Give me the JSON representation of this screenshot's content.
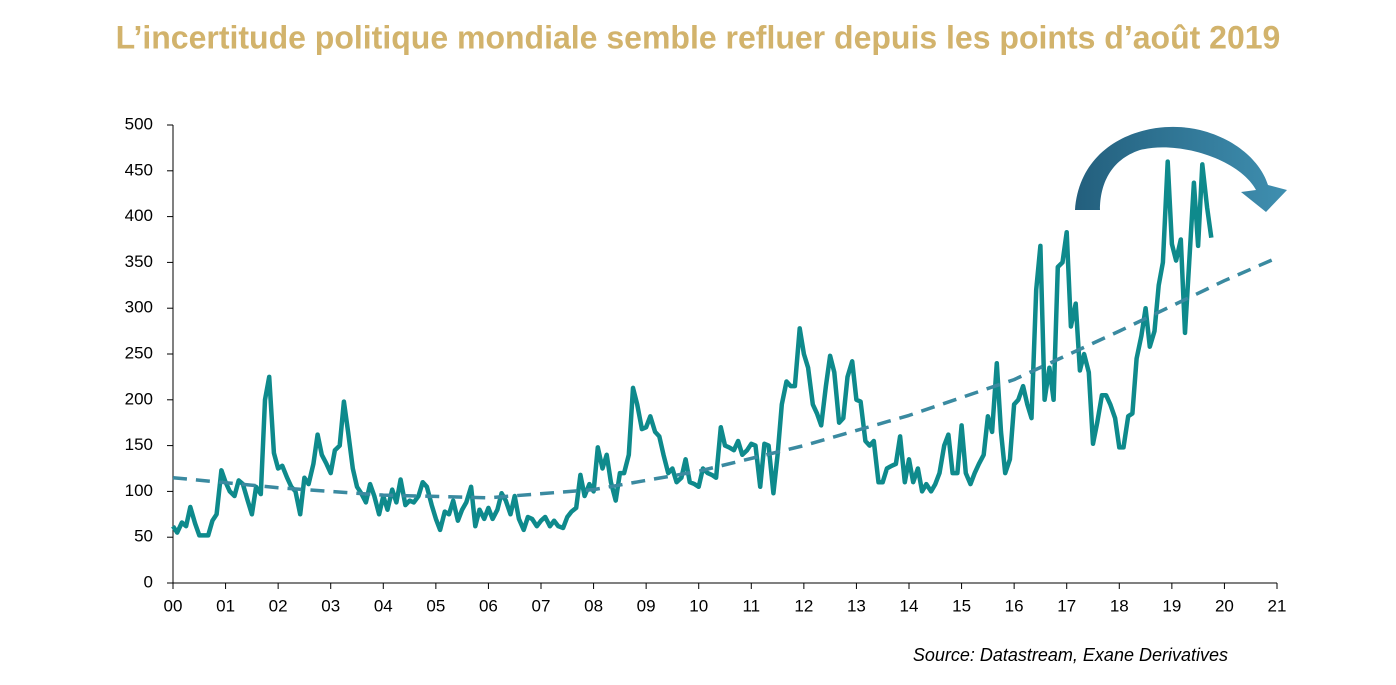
{
  "chart_data": {
    "type": "line",
    "title": "L’incertitude politique mondiale semble refluer depuis les points d’août 2019",
    "source": "Source: Datastream, Exane Derivatives",
    "xlim": [
      2000,
      2021
    ],
    "xticks": [
      {
        "value": 2000,
        "label": "00"
      },
      {
        "value": 2001,
        "label": "01"
      },
      {
        "value": 2002,
        "label": "02"
      },
      {
        "value": 2003,
        "label": "03"
      },
      {
        "value": 2004,
        "label": "04"
      },
      {
        "value": 2005,
        "label": "05"
      },
      {
        "value": 2006,
        "label": "06"
      },
      {
        "value": 2007,
        "label": "07"
      },
      {
        "value": 2008,
        "label": "08"
      },
      {
        "value": 2009,
        "label": "09"
      },
      {
        "value": 2010,
        "label": "10"
      },
      {
        "value": 2011,
        "label": "11"
      },
      {
        "value": 2012,
        "label": "12"
      },
      {
        "value": 2013,
        "label": "13"
      },
      {
        "value": 2014,
        "label": "14"
      },
      {
        "value": 2015,
        "label": "15"
      },
      {
        "value": 2016,
        "label": "16"
      },
      {
        "value": 2017,
        "label": "17"
      },
      {
        "value": 2018,
        "label": "18"
      },
      {
        "value": 2019,
        "label": "19"
      },
      {
        "value": 2020,
        "label": "20"
      },
      {
        "value": 2021,
        "label": "21"
      }
    ],
    "ylim": [
      0,
      500
    ],
    "yticks": [
      0,
      50,
      100,
      150,
      200,
      250,
      300,
      350,
      400,
      450,
      500
    ],
    "series": [
      {
        "color": "#0e8a8c",
        "dashed": false,
        "x": [
          2000.0,
          2000.08,
          2000.17,
          2000.25,
          2000.33,
          2000.42,
          2000.5,
          2000.67,
          2000.75,
          2000.83,
          2000.92,
          2001.0,
          2001.08,
          2001.17,
          2001.25,
          2001.33,
          2001.42,
          2001.5,
          2001.58,
          2001.67,
          2001.75,
          2001.83,
          2001.92,
          2002.0,
          2002.08,
          2002.17,
          2002.25,
          2002.33,
          2002.42,
          2002.5,
          2002.58,
          2002.67,
          2002.75,
          2002.83,
          2002.92,
          2003.0,
          2003.08,
          2003.17,
          2003.25,
          2003.33,
          2003.42,
          2003.5,
          2003.58,
          2003.67,
          2003.75,
          2003.83,
          2003.92,
          2004.0,
          2004.08,
          2004.17,
          2004.25,
          2004.33,
          2004.42,
          2004.5,
          2004.58,
          2004.67,
          2004.75,
          2004.83,
          2004.92,
          2005.0,
          2005.08,
          2005.17,
          2005.25,
          2005.33,
          2005.42,
          2005.5,
          2005.58,
          2005.67,
          2005.75,
          2005.83,
          2005.92,
          2006.0,
          2006.08,
          2006.17,
          2006.25,
          2006.33,
          2006.42,
          2006.5,
          2006.58,
          2006.67,
          2006.75,
          2006.83,
          2006.92,
          2007.0,
          2007.08,
          2007.17,
          2007.25,
          2007.33,
          2007.42,
          2007.5,
          2007.58,
          2007.67,
          2007.75,
          2007.83,
          2007.92,
          2008.0,
          2008.08,
          2008.17,
          2008.25,
          2008.33,
          2008.42,
          2008.5,
          2008.58,
          2008.67,
          2008.75,
          2008.83,
          2008.92,
          2009.0,
          2009.08,
          2009.17,
          2009.25,
          2009.33,
          2009.42,
          2009.5,
          2009.58,
          2009.67,
          2009.75,
          2009.83,
          2009.92,
          2010.0,
          2010.08,
          2010.17,
          2010.25,
          2010.33,
          2010.42,
          2010.5,
          2010.58,
          2010.67,
          2010.75,
          2010.83,
          2010.92,
          2011.0,
          2011.08,
          2011.17,
          2011.25,
          2011.33,
          2011.42,
          2011.5,
          2011.58,
          2011.67,
          2011.75,
          2011.83,
          2011.92,
          2012.0,
          2012.08,
          2012.17,
          2012.25,
          2012.33,
          2012.42,
          2012.5,
          2012.58,
          2012.67,
          2012.75,
          2012.83,
          2012.92,
          2013.0,
          2013.08,
          2013.17,
          2013.25,
          2013.33,
          2013.42,
          2013.5,
          2013.58,
          2013.67,
          2013.75,
          2013.83,
          2013.92,
          2014.0,
          2014.08,
          2014.17,
          2014.25,
          2014.33,
          2014.42,
          2014.5,
          2014.58,
          2014.67,
          2014.75,
          2014.83,
          2014.92,
          2015.0,
          2015.08,
          2015.17,
          2015.25,
          2015.33,
          2015.42,
          2015.5,
          2015.58,
          2015.67,
          2015.75,
          2015.83,
          2015.92,
          2016.0,
          2016.08,
          2016.17,
          2016.25,
          2016.33,
          2016.42,
          2016.5,
          2016.58,
          2016.67,
          2016.75,
          2016.83,
          2016.92,
          2017.0,
          2017.08,
          2017.17,
          2017.25,
          2017.33,
          2017.42,
          2017.5,
          2017.58,
          2017.67,
          2017.75,
          2017.83,
          2017.92,
          2018.0,
          2018.08,
          2018.17,
          2018.25,
          2018.33,
          2018.42,
          2018.5,
          2018.58,
          2018.67,
          2018.75,
          2018.83,
          2018.92,
          2019.0,
          2019.08,
          2019.17,
          2019.25,
          2019.33,
          2019.42,
          2019.5,
          2019.58,
          2019.67,
          2019.75
        ],
        "values": [
          62,
          55,
          66,
          62,
          83,
          65,
          52,
          52,
          68,
          75,
          123,
          110,
          100,
          95,
          112,
          108,
          90,
          75,
          105,
          97,
          200,
          225,
          142,
          125,
          128,
          115,
          105,
          100,
          75,
          115,
          108,
          130,
          162,
          140,
          130,
          120,
          145,
          150,
          198,
          165,
          125,
          105,
          98,
          88,
          108,
          95,
          75,
          95,
          80,
          102,
          88,
          113,
          85,
          90,
          88,
          95,
          110,
          105,
          85,
          70,
          58,
          78,
          75,
          90,
          68,
          80,
          88,
          105,
          62,
          80,
          70,
          82,
          70,
          80,
          98,
          90,
          75,
          95,
          70,
          58,
          72,
          70,
          62,
          68,
          72,
          62,
          68,
          62,
          60,
          72,
          78,
          82,
          118,
          95,
          108,
          100,
          148,
          125,
          140,
          110,
          90,
          120,
          120,
          140,
          213,
          195,
          168,
          170,
          182,
          165,
          160,
          140,
          120,
          125,
          110,
          115,
          135,
          110,
          108,
          105,
          125,
          120,
          118,
          115,
          170,
          150,
          148,
          145,
          155,
          140,
          145,
          152,
          150,
          105,
          152,
          150,
          98,
          140,
          195,
          220,
          215,
          215,
          278,
          250,
          235,
          195,
          185,
          172,
          215,
          248,
          230,
          175,
          180,
          225,
          242,
          200,
          198,
          155,
          150,
          155,
          110,
          110,
          125,
          128,
          130,
          160,
          110,
          135,
          110,
          125,
          100,
          108,
          100,
          108,
          120,
          150,
          162,
          120,
          120,
          172,
          120,
          108,
          120,
          130,
          140,
          182,
          165,
          240,
          165,
          120,
          135,
          195,
          200,
          215,
          195,
          180,
          320,
          368,
          200,
          235,
          200,
          345,
          350,
          383,
          280,
          305,
          232,
          250,
          230,
          152,
          175,
          205,
          205,
          195,
          180,
          148,
          148,
          182,
          185,
          245,
          270,
          300,
          258,
          275,
          325,
          350,
          460,
          370,
          352,
          375,
          273,
          350,
          437,
          368,
          457,
          410,
          377
        ]
      },
      {
        "color": "#3a8aa0",
        "dashed": true,
        "x": [
          2000,
          2002,
          2004,
          2006,
          2008,
          2010,
          2012,
          2014,
          2016,
          2018,
          2020,
          2021
        ],
        "values": [
          115,
          104,
          96,
          93,
          102,
          122,
          150,
          183,
          222,
          275,
          330,
          355
        ]
      }
    ]
  }
}
